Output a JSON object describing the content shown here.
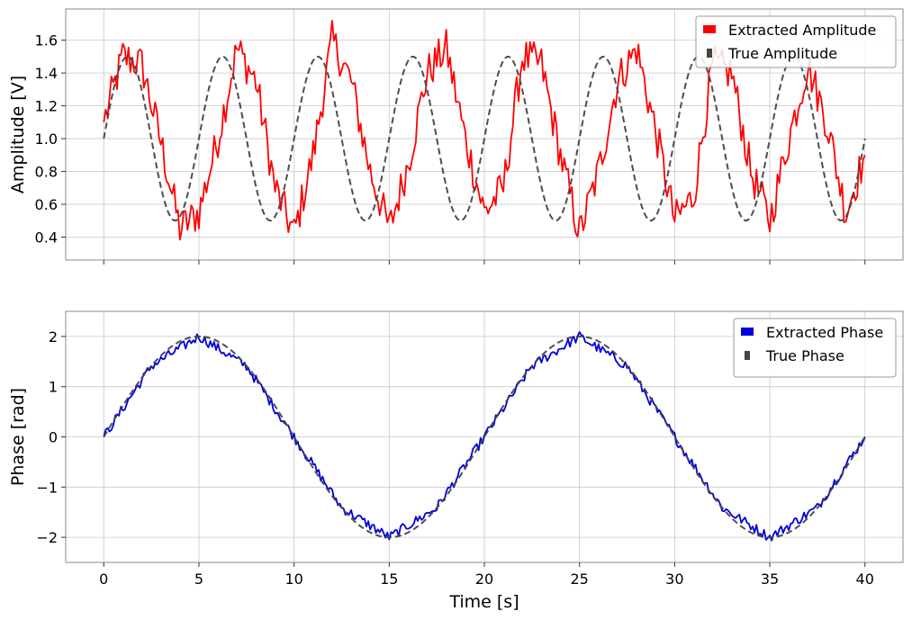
{
  "chart_data": [
    {
      "type": "line",
      "xlabel": "",
      "ylabel": "Amplitude [V]",
      "xlim": [
        -2,
        42
      ],
      "ylim": [
        0.26,
        1.79
      ],
      "xticks": [
        0,
        5,
        10,
        15,
        20,
        25,
        30,
        35,
        40
      ],
      "xtick_labels_visible": false,
      "yticks": [
        0.4,
        0.6,
        0.8,
        1.0,
        1.2,
        1.4,
        1.6
      ],
      "ytick_labels": [
        "0.4",
        "0.6",
        "0.8",
        "1.0",
        "1.2",
        "1.4",
        "1.6"
      ],
      "grid": true,
      "legend_position": "top-right",
      "series": [
        {
          "name": "Extracted Amplitude",
          "style": "solid",
          "color": "#ff0000",
          "noise_amplitude": 0.12,
          "x": [
            0,
            1,
            2,
            3,
            4,
            5,
            6,
            7,
            8,
            9,
            10,
            11,
            12,
            13,
            14,
            15,
            16,
            17,
            18,
            19,
            20,
            21,
            22,
            23,
            24,
            25,
            26,
            27,
            28,
            29,
            30,
            31,
            32,
            33,
            34,
            35,
            36,
            37,
            38,
            39,
            40
          ],
          "y": [
            1.1,
            1.5,
            1.45,
            0.98,
            0.45,
            0.55,
            1.0,
            1.55,
            1.35,
            0.7,
            0.42,
            0.9,
            1.6,
            1.35,
            0.8,
            0.45,
            0.85,
            1.4,
            1.55,
            1.0,
            0.55,
            0.7,
            1.5,
            1.45,
            0.9,
            0.42,
            0.8,
            1.35,
            1.55,
            1.05,
            0.5,
            0.65,
            1.45,
            1.4,
            0.8,
            0.5,
            1.0,
            1.45,
            1.1,
            0.55,
            0.9
          ]
        },
        {
          "name": "True Amplitude",
          "style": "dashed",
          "color": "#444444",
          "function": "1 + 0.5*sin(2*pi*0.2*t)",
          "x_range": [
            0,
            40
          ]
        }
      ]
    },
    {
      "type": "line",
      "xlabel": "Time [s]",
      "ylabel": "Phase [rad]",
      "xlim": [
        -2,
        42
      ],
      "ylim": [
        -2.5,
        2.5
      ],
      "xticks": [
        0,
        5,
        10,
        15,
        20,
        25,
        30,
        35,
        40
      ],
      "xtick_labels": [
        "0",
        "5",
        "10",
        "15",
        "20",
        "25",
        "30",
        "35",
        "40"
      ],
      "yticks": [
        -2,
        -1,
        0,
        1,
        2
      ],
      "ytick_labels": [
        "−2",
        "−1",
        "0",
        "1",
        "2"
      ],
      "grid": true,
      "legend_position": "top-right",
      "series": [
        {
          "name": "Extracted Phase",
          "style": "solid",
          "color": "#0000dd",
          "noise_amplitude": 0.1,
          "x": [
            0,
            2.5,
            5,
            7.5,
            10,
            12.5,
            15,
            17.5,
            20,
            22.5,
            25,
            27.5,
            30,
            32.5,
            35,
            37.5,
            40
          ],
          "y": [
            0,
            1.41,
            2.0,
            1.41,
            0,
            -1.41,
            -2.0,
            -1.41,
            0,
            1.41,
            2.0,
            1.41,
            0,
            -1.41,
            -2.0,
            -1.41,
            0
          ]
        },
        {
          "name": "True Phase",
          "style": "dashed",
          "color": "#444444",
          "function": "2*sin(2*pi*0.05*t)",
          "x_range": [
            0,
            40
          ]
        }
      ]
    }
  ]
}
